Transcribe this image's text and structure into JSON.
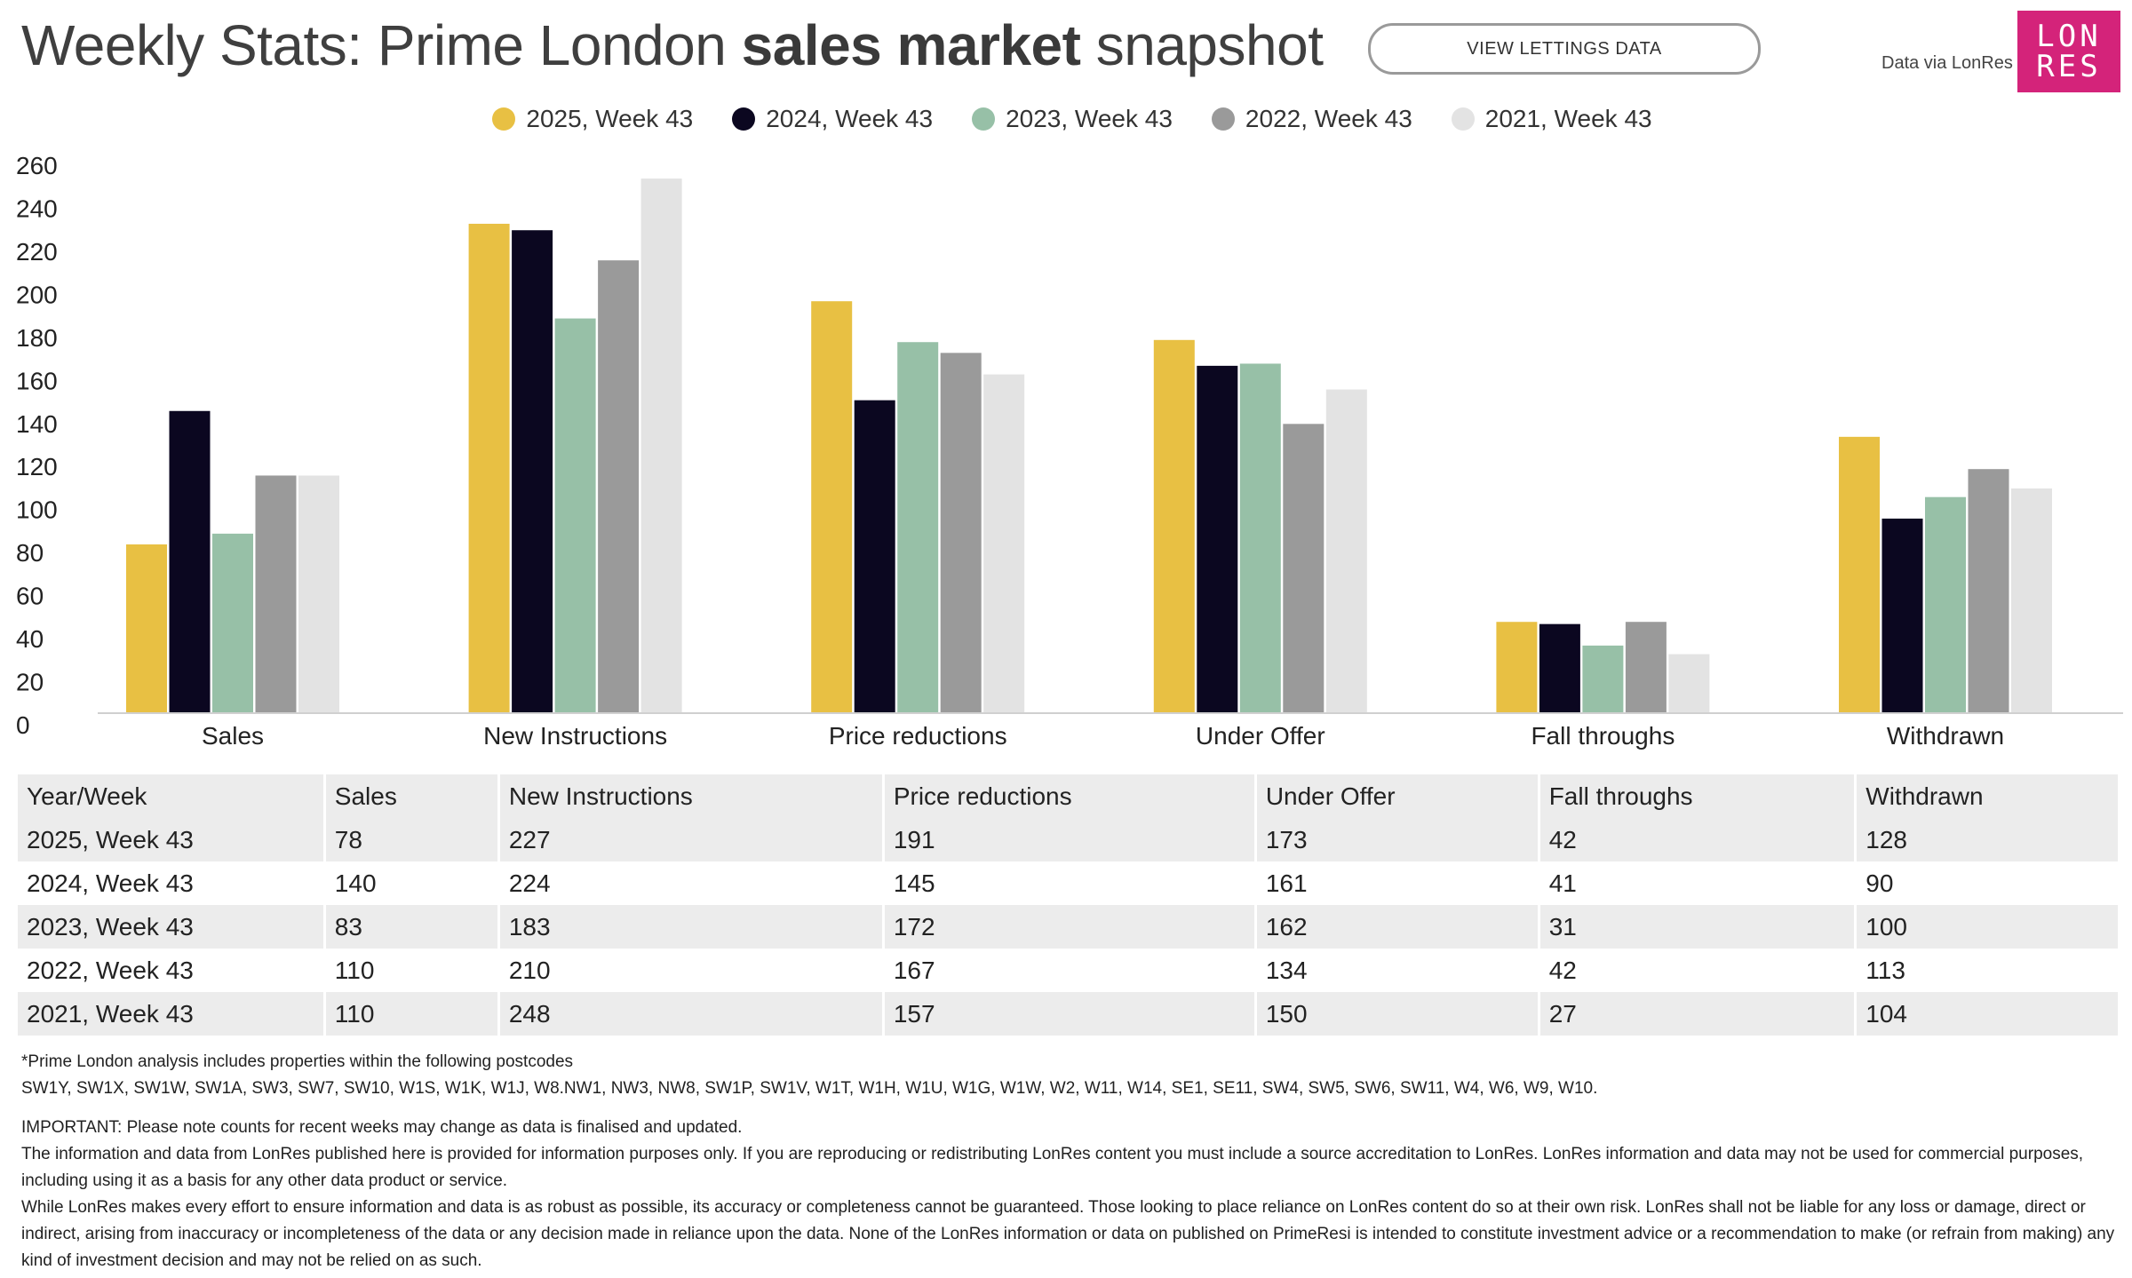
{
  "header": {
    "title_pre": "Weekly Stats: Prime London ",
    "title_bold": "sales market",
    "title_post": " snapshot",
    "button_label": "VIEW LETTINGS DATA",
    "data_via": "Data via LonRes",
    "logo_line1": "LON",
    "logo_line2": "RES",
    "logo_color": "#d4237a"
  },
  "chart_data": {
    "type": "bar",
    "categories": [
      "Sales",
      "New Instructions",
      "Price reductions",
      "Under Offer",
      "Fall throughs",
      "Withdrawn"
    ],
    "series": [
      {
        "name": "2025, Week 43",
        "color": "#e8c043",
        "values": [
          78,
          227,
          191,
          173,
          42,
          128
        ]
      },
      {
        "name": "2024, Week 43",
        "color": "#0b0720",
        "values": [
          140,
          224,
          145,
          161,
          41,
          90
        ]
      },
      {
        "name": "2023, Week 43",
        "color": "#97c0a7",
        "values": [
          83,
          183,
          172,
          162,
          31,
          100
        ]
      },
      {
        "name": "2022, Week 43",
        "color": "#9a9a9a",
        "values": [
          110,
          210,
          167,
          134,
          42,
          113
        ]
      },
      {
        "name": "2021, Week 43",
        "color": "#e3e3e3",
        "values": [
          110,
          248,
          157,
          150,
          27,
          104
        ]
      }
    ],
    "yticks": [
      0,
      20,
      40,
      60,
      80,
      100,
      120,
      140,
      160,
      180,
      200,
      220,
      240,
      260
    ],
    "ylim": [
      0,
      260
    ],
    "legend_position": "top-center",
    "grid": false
  },
  "table": {
    "headers": [
      "Year/Week",
      "Sales",
      "New Instructions",
      "Price reductions",
      "Under Offer",
      "Fall throughs",
      "Withdrawn"
    ],
    "rows": [
      [
        "2025, Week 43",
        "78",
        "227",
        "191",
        "173",
        "42",
        "128"
      ],
      [
        "2024, Week 43",
        "140",
        "224",
        "145",
        "161",
        "41",
        "90"
      ],
      [
        "2023, Week 43",
        "83",
        "183",
        "172",
        "162",
        "31",
        "100"
      ],
      [
        "2022, Week 43",
        "110",
        "210",
        "167",
        "134",
        "42",
        "113"
      ],
      [
        "2021, Week 43",
        "110",
        "248",
        "157",
        "150",
        "27",
        "104"
      ]
    ]
  },
  "footnotes": {
    "postcodes_intro": "*Prime London analysis includes properties within the following postcodes",
    "postcodes": "SW1Y, SW1X, SW1W, SW1A, SW3, SW7, SW10, W1S, W1K, W1J, W8.NW1, NW3, NW8, SW1P, SW1V, W1T, W1H, W1U, W1G, W1W, W2, W11, W14, SE1, SE11, SW4, SW5, SW6, SW11, W4, W6, W9, W10.",
    "important": "IMPORTANT: Please note counts for recent weeks may change as data is finalised and updated.",
    "info": "The information and data from LonRes published here is provided for information purposes only. If you are reproducing or redistributing LonRes content you must include a source accreditation to LonRes. LonRes information and data may not be used for commercial purposes, including using it as a basis for any other data product or service.",
    "disclaimer": "While LonRes makes every effort to ensure information and data is as robust as possible, its accuracy or completeness cannot be guaranteed. Those looking to place reliance on LonRes content do so at their own risk. LonRes shall not be liable for any loss or damage, direct or indirect, arising from inaccuracy or incompleteness of the data or any decision made in reliance upon the data. None of the LonRes information or data on published on PrimeResi is intended to constitute investment advice or a recommendation to make (or refrain from making) any kind of investment decision and may not be relied on as such."
  }
}
